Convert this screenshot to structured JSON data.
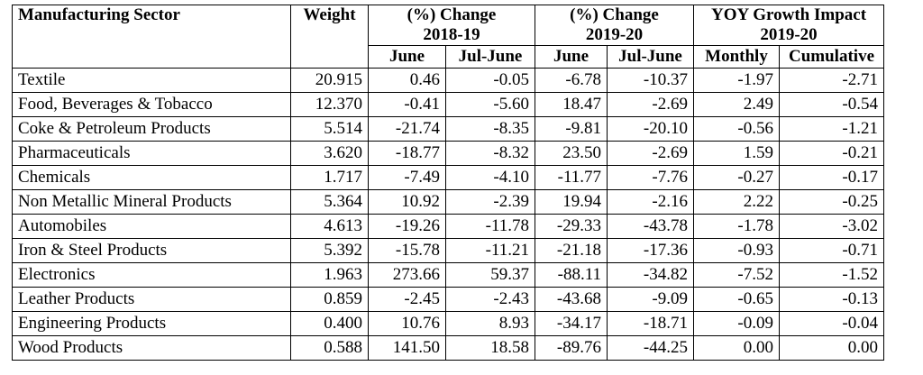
{
  "caption_fragment": "",
  "table": {
    "headers": {
      "sector": "Manufacturing Sector",
      "weight": "Weight",
      "change_2018_19": "(%) Change 2018-19",
      "change_2018_19_line1": "(%) Change",
      "change_2018_19_line2": "2018-19",
      "change_2019_20_line1": "(%) Change",
      "change_2019_20_line2": "2019-20",
      "yoy_line1": "YOY Growth Impact",
      "yoy_line2": "2019-20",
      "june": "June",
      "jul_june": "Jul-June",
      "monthly": "Monthly",
      "cumulative": "Cumulative"
    },
    "rows": [
      {
        "sector": "Textile",
        "weight": "20.915",
        "c1819_june": "0.46",
        "c1819_juljune": "-0.05",
        "c1920_june": "-6.78",
        "c1920_juljune": "-10.37",
        "monthly": "-1.97",
        "cumulative": "-2.71"
      },
      {
        "sector": "Food, Beverages & Tobacco",
        "weight": "12.370",
        "c1819_june": "-0.41",
        "c1819_juljune": "-5.60",
        "c1920_june": "18.47",
        "c1920_juljune": "-2.69",
        "monthly": "2.49",
        "cumulative": "-0.54"
      },
      {
        "sector": "Coke & Petroleum Products",
        "weight": "5.514",
        "c1819_june": "-21.74",
        "c1819_juljune": "-8.35",
        "c1920_june": "-9.81",
        "c1920_juljune": "-20.10",
        "monthly": "-0.56",
        "cumulative": "-1.21"
      },
      {
        "sector": "Pharmaceuticals",
        "weight": "3.620",
        "c1819_june": "-18.77",
        "c1819_juljune": "-8.32",
        "c1920_june": "23.50",
        "c1920_juljune": "-2.69",
        "monthly": "1.59",
        "cumulative": "-0.21"
      },
      {
        "sector": "Chemicals",
        "weight": "1.717",
        "c1819_june": "-7.49",
        "c1819_juljune": "-4.10",
        "c1920_june": "-11.77",
        "c1920_juljune": "-7.76",
        "monthly": "-0.27",
        "cumulative": "-0.17"
      },
      {
        "sector": "Non Metallic Mineral Products",
        "weight": "5.364",
        "c1819_june": "10.92",
        "c1819_juljune": "-2.39",
        "c1920_june": "19.94",
        "c1920_juljune": "-2.16",
        "monthly": "2.22",
        "cumulative": "-0.25"
      },
      {
        "sector": "Automobiles",
        "weight": "4.613",
        "c1819_june": "-19.26",
        "c1819_juljune": "-11.78",
        "c1920_june": "-29.33",
        "c1920_juljune": "-43.78",
        "monthly": "-1.78",
        "cumulative": "-3.02"
      },
      {
        "sector": "Iron & Steel Products",
        "weight": "5.392",
        "c1819_june": "-15.78",
        "c1819_juljune": "-11.21",
        "c1920_june": "-21.18",
        "c1920_juljune": "-17.36",
        "monthly": "-0.93",
        "cumulative": "-0.71"
      },
      {
        "sector": "Electronics",
        "weight": "1.963",
        "c1819_june": "273.66",
        "c1819_juljune": "59.37",
        "c1920_june": "-88.11",
        "c1920_juljune": "-34.82",
        "monthly": "-7.52",
        "cumulative": "-1.52"
      },
      {
        "sector": "Leather Products",
        "weight": "0.859",
        "c1819_june": "-2.45",
        "c1819_juljune": "-2.43",
        "c1920_june": "-43.68",
        "c1920_juljune": "-9.09",
        "monthly": "-0.65",
        "cumulative": "-0.13"
      },
      {
        "sector": "Engineering Products",
        "weight": "0.400",
        "c1819_june": "10.76",
        "c1819_juljune": "8.93",
        "c1920_june": "-34.17",
        "c1920_juljune": "-18.71",
        "monthly": "-0.09",
        "cumulative": "-0.04"
      },
      {
        "sector": "Wood Products",
        "weight": "0.588",
        "c1819_june": "141.50",
        "c1819_juljune": "18.58",
        "c1920_june": "-89.76",
        "c1920_juljune": "-44.25",
        "monthly": "0.00",
        "cumulative": "0.00"
      }
    ]
  }
}
